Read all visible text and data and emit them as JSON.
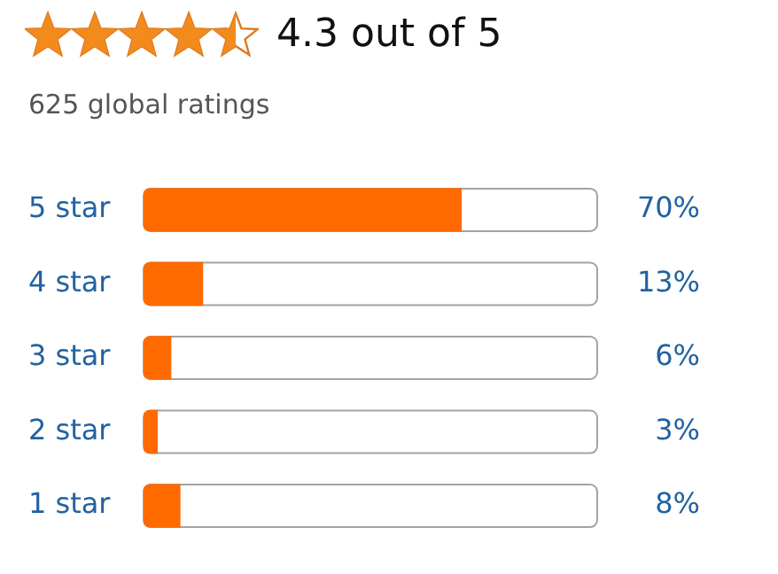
{
  "chart_data": {
    "type": "bar",
    "orientation": "horizontal",
    "title": "4.3 out of 5",
    "subtitle": "625 global ratings",
    "categories": [
      "5 star",
      "4 star",
      "3 star",
      "2 star",
      "1 star"
    ],
    "values": [
      70,
      13,
      6,
      3,
      8
    ],
    "value_labels": [
      "70%",
      "13%",
      "6%",
      "3%",
      "8%"
    ],
    "color": "#ff6a00",
    "xlim": [
      0,
      100
    ],
    "tick_labels": "y",
    "grid": false,
    "legend": false
  }
}
